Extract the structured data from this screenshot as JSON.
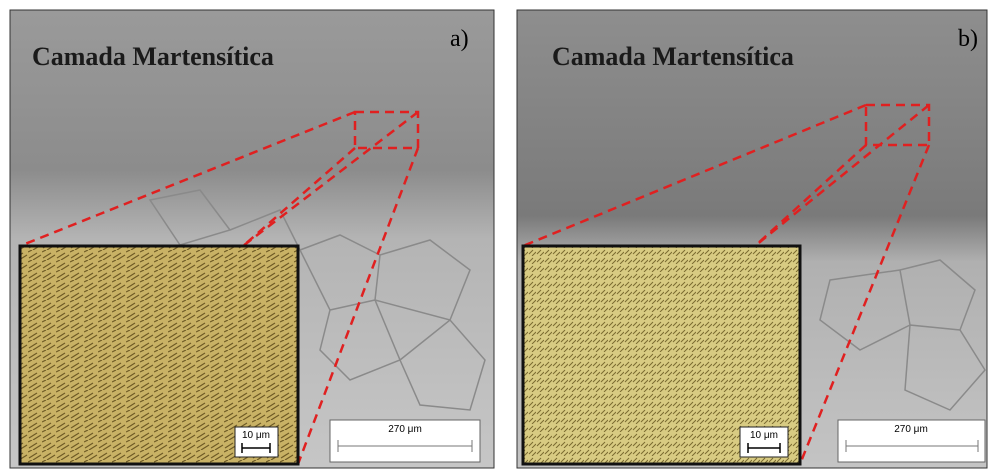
{
  "panels": [
    {
      "label": "a)",
      "title": "Camada Martensítica",
      "inset_scale": "10 μm",
      "scale": "270 μm"
    },
    {
      "label": "b)",
      "title": "Camada Martensítica",
      "inset_scale": "10 μm",
      "scale": "270 μm"
    }
  ]
}
